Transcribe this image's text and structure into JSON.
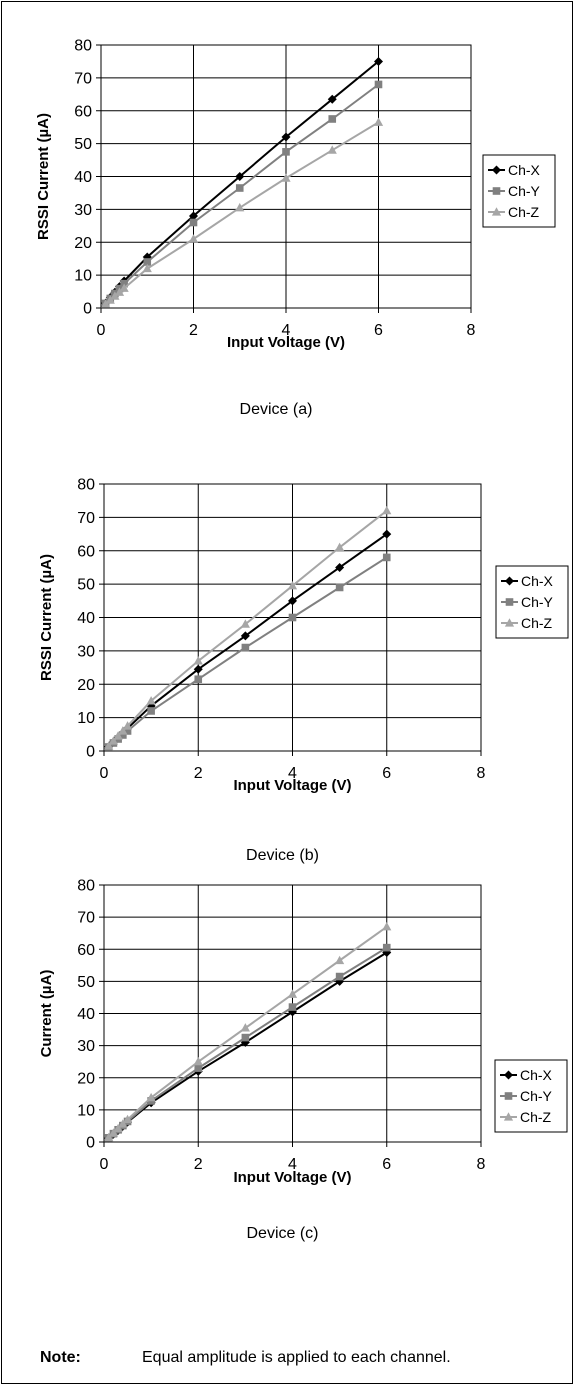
{
  "chart_data": [
    {
      "type": "line",
      "xlabel": "Input Voltage (V)",
      "ylabel": "RSSI Current (µA)",
      "caption": "Device (a)",
      "xlim": [
        0,
        8
      ],
      "ylim": [
        0,
        80
      ],
      "xticks": [
        "0",
        "2",
        "4",
        "6",
        "8"
      ],
      "yticks": [
        "0",
        "10",
        "20",
        "30",
        "40",
        "50",
        "60",
        "70",
        "80"
      ],
      "grid": "on",
      "legend_position": "right",
      "x": [
        0.1,
        0.2,
        0.3,
        0.4,
        0.5,
        1,
        2,
        3,
        4,
        5,
        6
      ],
      "series": [
        {
          "name": "Ch-X",
          "marker": "diamond",
          "color": "#000000",
          "values": [
            1.5,
            3.2,
            4.8,
            6.5,
            8.2,
            15.5,
            28,
            40,
            52,
            63.5,
            75
          ]
        },
        {
          "name": "Ch-Y",
          "marker": "square",
          "color": "#808080",
          "values": [
            1.4,
            2.9,
            4.4,
            5.9,
            7.4,
            14,
            26,
            36.5,
            47.5,
            57.5,
            68
          ]
        },
        {
          "name": "Ch-Z",
          "marker": "triangle",
          "color": "#a6a6a6",
          "values": [
            1.2,
            2.4,
            3.6,
            4.8,
            6,
            12,
            21,
            30.5,
            39.5,
            48,
            56.5
          ]
        }
      ]
    },
    {
      "type": "line",
      "xlabel": "Input Voltage (V)",
      "ylabel": "RSSI Current (µA)",
      "caption": "Device (b)",
      "xlim": [
        0,
        8
      ],
      "ylim": [
        0,
        80
      ],
      "xticks": [
        "0",
        "2",
        "4",
        "6",
        "8"
      ],
      "yticks": [
        "0",
        "10",
        "20",
        "30",
        "40",
        "50",
        "60",
        "70",
        "80"
      ],
      "grid": "on",
      "legend_position": "right",
      "x": [
        0.1,
        0.2,
        0.3,
        0.4,
        0.5,
        1,
        2,
        3,
        4,
        5,
        6
      ],
      "series": [
        {
          "name": "Ch-X",
          "marker": "diamond",
          "color": "#000000",
          "values": [
            1.3,
            2.7,
            4,
            5.4,
            6.8,
            13.5,
            24.5,
            34.5,
            45,
            55,
            65
          ]
        },
        {
          "name": "Ch-Y",
          "marker": "square",
          "color": "#808080",
          "values": [
            1.2,
            2.4,
            3.6,
            4.8,
            6,
            12,
            21.5,
            31,
            40,
            49,
            58
          ]
        },
        {
          "name": "Ch-Z",
          "marker": "triangle",
          "color": "#a6a6a6",
          "values": [
            1.5,
            3,
            4.5,
            6,
            7.5,
            15,
            27,
            38,
            49.5,
            61,
            72
          ]
        }
      ]
    },
    {
      "type": "line",
      "xlabel": "Input Voltage (V)",
      "ylabel": "Current (µA)",
      "caption": "Device (c)",
      "xlim": [
        0,
        8
      ],
      "ylim": [
        0,
        80
      ],
      "xticks": [
        "0",
        "2",
        "4",
        "6",
        "8"
      ],
      "yticks": [
        "0",
        "10",
        "20",
        "30",
        "40",
        "50",
        "60",
        "70",
        "80"
      ],
      "grid": "on",
      "legend_position": "right",
      "x": [
        0.1,
        0.2,
        0.3,
        0.4,
        0.5,
        1,
        2,
        3,
        4,
        5,
        6
      ],
      "series": [
        {
          "name": "Ch-X",
          "marker": "diamond",
          "color": "#000000",
          "values": [
            1.2,
            2.4,
            3.6,
            4.9,
            6.2,
            12.2,
            22,
            31,
            40.5,
            50,
            59
          ]
        },
        {
          "name": "Ch-Y",
          "marker": "square",
          "color": "#808080",
          "values": [
            1.3,
            2.6,
            3.8,
            5.1,
            6.4,
            12.8,
            23,
            32.5,
            42,
            51.5,
            60.5
          ]
        },
        {
          "name": "Ch-Z",
          "marker": "triangle",
          "color": "#a6a6a6",
          "values": [
            1.4,
            2.8,
            4.2,
            5.6,
            7,
            13.8,
            25,
            35.5,
            46,
            56.5,
            67
          ]
        }
      ]
    }
  ],
  "note": {
    "label": "Note:",
    "text": "Equal amplitude is applied to each channel."
  }
}
